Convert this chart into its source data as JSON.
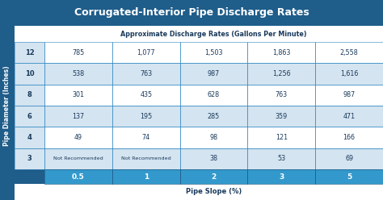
{
  "title": "Corrugated-Interior Pipe Discharge Rates",
  "subtitle": "Approximate Discharge Rates (Gallons Per Minute)",
  "col_header": [
    "0.5",
    "1",
    "2",
    "3",
    "5"
  ],
  "row_header": [
    "12",
    "10",
    "8",
    "6",
    "4",
    "3"
  ],
  "xlabel": "Pipe Slope (%)",
  "ylabel": "Pipe Diameter (Inches)",
  "data": [
    [
      "785",
      "1,077",
      "1,503",
      "1,863",
      "2,558"
    ],
    [
      "538",
      "763",
      "987",
      "1,256",
      "1,616"
    ],
    [
      "301",
      "435",
      "628",
      "763",
      "987"
    ],
    [
      "137",
      "195",
      "285",
      "359",
      "471"
    ],
    [
      "49",
      "74",
      "98",
      "121",
      "166"
    ],
    [
      "Not Recommended",
      "Not Recommended",
      "38",
      "53",
      "69"
    ]
  ],
  "bg_dark_blue": "#1f5d8a",
  "bg_table_white": "#f0f5fa",
  "bg_row_even": "#ffffff",
  "bg_row_odd": "#d4e4f0",
  "bg_col_header": "#3399cc",
  "bg_title": "#1f5d8a",
  "bg_subtitle": "#ffffff",
  "bg_xlabel": "#ffffff",
  "bg_row_hdr": "#d4e4f0",
  "text_dark": "#1a3a5c",
  "text_white": "#ffffff",
  "border_blue": "#2e86c1",
  "ylabel_color": "#ffffff",
  "n_rows": 6,
  "n_cols": 5,
  "title_fontsize": 9.0,
  "subtitle_fontsize": 5.8,
  "cell_fontsize": 5.8,
  "hdr_fontsize": 6.5,
  "rowhdr_fontsize": 6.0,
  "ylabel_fontsize": 5.5,
  "xlabel_fontsize": 6.0
}
